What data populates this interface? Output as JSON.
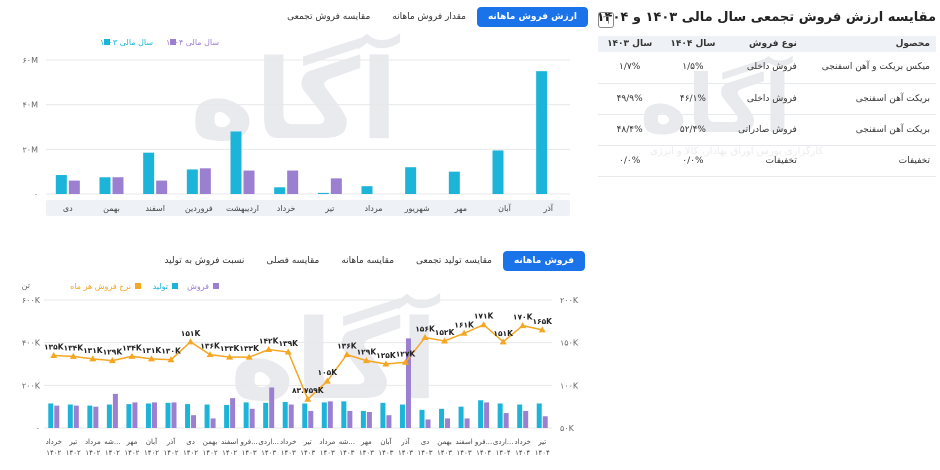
{
  "watermark": {
    "main": "آگاه",
    "sub": "کارگزاری بورس اوراق بهادار، کالا و انرژی"
  },
  "table_panel": {
    "title": "مقایسه ارزش فروش تجمعی سال مالی ۱۴۰۳ و ۱۴۰۴",
    "share_icon": "share-icon",
    "headers": [
      "محصول",
      "نوع فروش",
      "سال ۱۴۰۴",
      "سال ۱۴۰۳"
    ],
    "rows": [
      [
        "میکس بریکت و آهن اسفنجی",
        "فروش داخلی",
        "۱/۵%",
        "۱/۷%"
      ],
      [
        "بریکت آهن اسفنجی",
        "فروش داخلی",
        "۴۶/۱%",
        "۴۹/۹%"
      ],
      [
        "بریکت آهن اسفنجی",
        "فروش صادراتی",
        "۵۲/۴%",
        "۴۸/۴%"
      ],
      [
        "تخفیفات",
        "تخفیفات",
        "۰/۰%",
        "۰/۰%"
      ]
    ]
  },
  "top_tabs": [
    {
      "label": "ارزش فروش ماهانه",
      "active": true
    },
    {
      "label": "مقدار فروش ماهانه",
      "active": false
    },
    {
      "label": "مقایسه فروش تجمعی",
      "active": false
    }
  ],
  "bottom_tabs": [
    {
      "label": "فروش ماهانه",
      "active": true
    },
    {
      "label": "مقایسه تولید تجمعی",
      "active": false
    },
    {
      "label": "مقایسه ماهانه",
      "active": false
    },
    {
      "label": "مقایسه فصلی",
      "active": false
    },
    {
      "label": "نسبت فروش به تولید",
      "active": false
    }
  ],
  "colors": {
    "cyan": "#1cb5d9",
    "purple": "#9b7fd0",
    "orange": "#f5a623",
    "grid": "#e8e8e8",
    "accent": "#1a73e8"
  },
  "chart_data": [
    {
      "type": "bar",
      "legend": [
        "سال مالی ۱۴۰۳",
        "سال مالی ۱۴۰۴"
      ],
      "categories": [
        "آذر",
        "آبان",
        "مهر",
        "شهریور",
        "مرداد",
        "تیر",
        "خرداد",
        "اردیبهشت",
        "فروردین",
        "اسفند",
        "بهمن",
        "دی"
      ],
      "series": [
        {
          "name": "سال مالی ۱۴۰۳",
          "values": [
            55,
            19.5,
            10,
            12,
            3.5,
            0.5,
            3,
            28,
            11,
            18.5,
            7.5,
            8.5
          ]
        },
        {
          "name": "سال مالی ۱۴۰۴",
          "values": [
            0,
            0,
            0,
            0,
            0,
            7,
            10.5,
            10.5,
            11.5,
            6,
            7.5,
            6
          ]
        }
      ],
      "yticks": [
        "۰",
        "۲۰M",
        "۴۰M",
        "۶۰M"
      ],
      "ylim": [
        0,
        60
      ]
    },
    {
      "type": "bar",
      "legend": [
        "فروش",
        "تولید",
        "نرخ فروش هر ماه"
      ],
      "left_unit": "تن",
      "left_yticks": [
        "۰",
        "۲۰۰K",
        "۴۰۰K",
        "۶۰۰K"
      ],
      "right_yticks": [
        "۵۰K",
        "۱۰۰K",
        "۱۵۰K",
        "۲۰۰K"
      ],
      "categories": [
        "خرداد ۱۴۰۲",
        "تیر ۱۴۰۲",
        "مرداد ۱۴۰۲",
        "شه... ۱۴۰۲",
        "مهر ۱۴۰۲",
        "آبان ۱۴۰۲",
        "آذر ۱۴۰۲",
        "دی ۱۴۰۲",
        "بهمن ۱۴۰۲",
        "اسفند ۱۴۰۲",
        "فرو... ۱۴۰۳",
        "اردی... ۱۴۰۳",
        "خرداد ۱۴۰۳",
        "تیر ۱۴۰۳",
        "مرداد ۱۴۰۳",
        "شه... ۱۴۰۳",
        "مهر ۱۴۰۳",
        "آبان ۱۴۰۳",
        "آذر ۱۴۰۳",
        "دی ۱۴۰۳",
        "بهمن ۱۴۰۳",
        "اسفند ۱۴۰۳",
        "فرو... ۱۴۰۴",
        "اردی... ۱۴۰۴",
        "خرداد ۱۴۰۴",
        "تیر ۱۴۰۴"
      ],
      "series": [
        {
          "name": "تولید",
          "values": [
            115,
            110,
            105,
            110,
            112,
            115,
            118,
            112,
            110,
            108,
            120,
            118,
            122,
            115,
            120,
            125,
            80,
            118,
            110,
            85,
            90,
            100,
            130,
            115,
            110,
            115
          ]
        },
        {
          "name": "فروش",
          "values": [
            105,
            105,
            100,
            160,
            120,
            120,
            120,
            60,
            45,
            140,
            90,
            190,
            110,
            80,
            125,
            80,
            75,
            60,
            420,
            40,
            45,
            45,
            120,
            70,
            80,
            55
          ]
        },
        {
          "name": "نرخ فروش هر ماه",
          "values": [
            135,
            134,
            131,
            129,
            134,
            131,
            130,
            151,
            136,
            133,
            133,
            142,
            139,
            83.759,
            105,
            136,
            129,
            125,
            127,
            156,
            152,
            161,
            171,
            151,
            170,
            165
          ]
        }
      ],
      "line_labels": [
        "۱۳۵K",
        "۱۳۴K",
        "۱۳۱K",
        "۱۲۹K",
        "۱۳۴K",
        "۱۳۱K",
        "۱۳۰K",
        "۱۵۱K",
        "۱۳۶K",
        "۱۳۳K",
        "۱۳۳K",
        "۱۴۲K",
        "۱۳۹K",
        "۸۳.۷۵۹K",
        "۱۰۵K",
        "۱۳۶K",
        "۱۲۹K",
        "۱۲۵K",
        "۱۲۷K",
        "۱۵۶K",
        "۱۵۲K",
        "۱۶۱K",
        "۱۷۱K",
        "۱۵۱K",
        "۱۷۰K",
        "۱۶۵K"
      ],
      "ylim_left": [
        0,
        600
      ],
      "ylim_right": [
        50,
        200
      ]
    }
  ]
}
